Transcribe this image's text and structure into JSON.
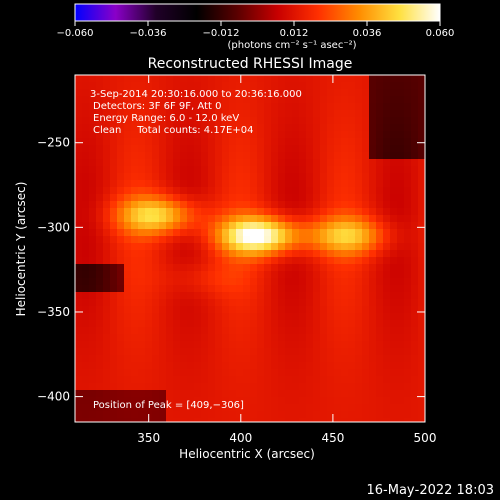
{
  "chart_data": {
    "type": "heatmap",
    "title": "Reconstructed RHESSI Image",
    "xlabel": "Heliocentric X (arcsec)",
    "ylabel": "Heliocentric Y (arcsec)",
    "xlim": [
      310,
      500
    ],
    "ylim": [
      -415,
      -210
    ],
    "x_ticks": [
      350,
      400,
      450,
      500
    ],
    "x_tick_labels": [
      "350",
      "400",
      "450",
      "500"
    ],
    "y_ticks": [
      -250,
      -300,
      -350,
      -400
    ],
    "y_tick_labels": [
      "−250",
      "−300",
      "−350",
      "−400"
    ],
    "colorbar": {
      "range": [
        -0.06,
        0.06
      ],
      "ticks": [
        -0.06,
        -0.036,
        -0.012,
        0.012,
        0.036,
        0.06
      ],
      "tick_labels": [
        "−0.060",
        "−0.036",
        "−0.012",
        "0.012",
        "0.036",
        "0.060"
      ],
      "unit_label": "(photons cm⁻² s⁻¹ asec⁻²)",
      "stops": [
        "#0000ff",
        "#8a00c8",
        "#200028",
        "#000000",
        "#5a0000",
        "#c80000",
        "#ff3000",
        "#ff8c00",
        "#ffe040",
        "#ffffff"
      ]
    },
    "annotations": [
      "3-Sep-2014 20:30:16.000 to 20:36:16.000",
      "Detectors: 3F 6F 9F, Att 0",
      "Energy Range: 6.0 - 12.0 keV",
      "Clean     Total counts: 4.17E+04"
    ],
    "peak_label": "Position of Peak = [409,−306]",
    "peak": {
      "x": 409,
      "y": -306
    },
    "sources": [
      {
        "x": 355,
        "y": -293,
        "intensity": 0.045
      },
      {
        "x": 410,
        "y": -305,
        "intensity": 0.06
      },
      {
        "x": 458,
        "y": -305,
        "intensity": 0.04
      },
      {
        "x": 380,
        "y": -330,
        "intensity": 0.02
      }
    ]
  },
  "footer": {
    "timestamp": "16‑May‑2022 18:03"
  }
}
